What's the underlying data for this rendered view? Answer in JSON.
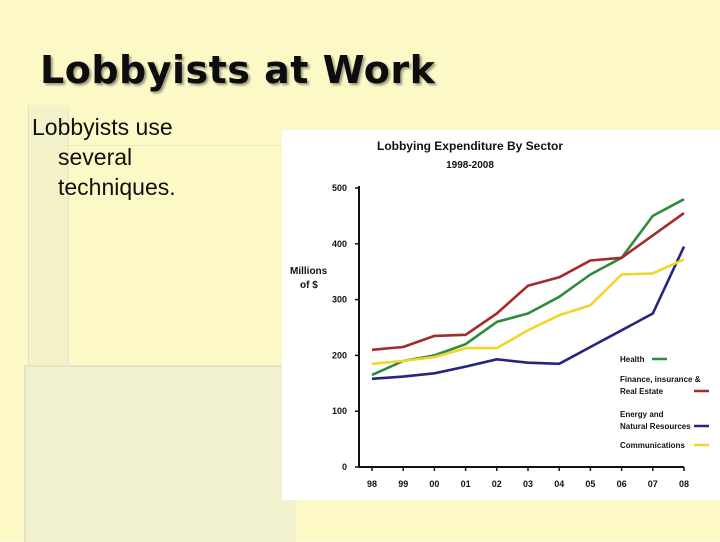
{
  "slide": {
    "title": "Lobbyists at Work",
    "bullet_line1": "Lobbyists use",
    "bullet_line2": "several",
    "bullet_line3": "techniques."
  },
  "chart_data": {
    "type": "line",
    "title": "Lobbying Expenditure By Sector",
    "subtitle": "1998-2008",
    "ylabel_line1": "Millions",
    "ylabel_line2": "of $",
    "xlabel": "",
    "x": [
      "98",
      "99",
      "00",
      "01",
      "02",
      "03",
      "04",
      "05",
      "06",
      "07",
      "08"
    ],
    "y_ticks": [
      "0",
      "100",
      "200",
      "300",
      "400",
      "500"
    ],
    "ylim": [
      0,
      500
    ],
    "grid": false,
    "legend_position": "right",
    "series": [
      {
        "name": "Health",
        "color": "#2e8b3e",
        "values": [
          165,
          190,
          200,
          220,
          260,
          275,
          305,
          345,
          375,
          450,
          480
        ]
      },
      {
        "name": "Finance, insurance & Real Estate",
        "color": "#a52a2a",
        "values": [
          210,
          215,
          235,
          237,
          275,
          325,
          340,
          370,
          375,
          415,
          455
        ]
      },
      {
        "name": "Energy and Natural Resources",
        "color": "#252580",
        "values": [
          158,
          162,
          168,
          180,
          193,
          187,
          185,
          215,
          245,
          275,
          395
        ]
      },
      {
        "name": "Communications",
        "color": "#f2d42b",
        "values": [
          185,
          190,
          197,
          213,
          213,
          245,
          272,
          290,
          345,
          347,
          372
        ]
      }
    ]
  }
}
